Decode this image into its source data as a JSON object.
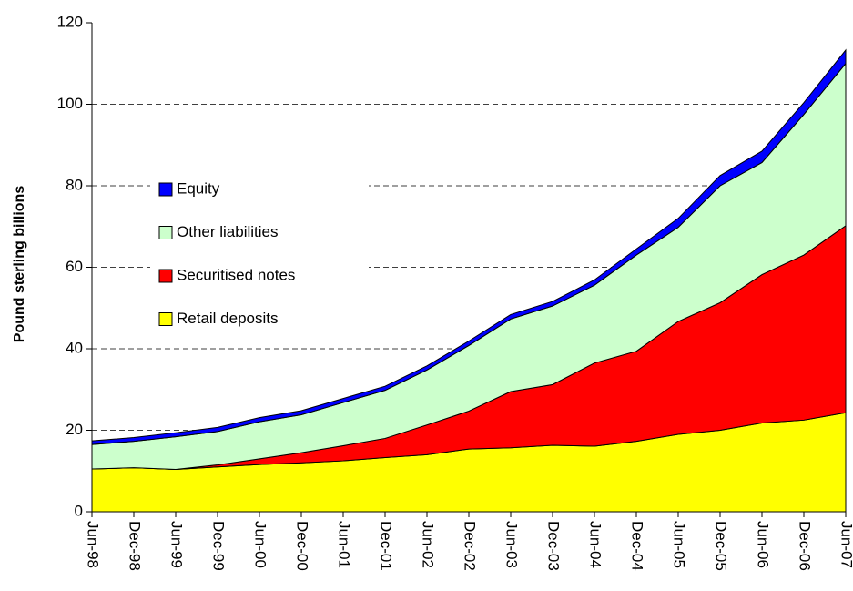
{
  "chart_data": {
    "type": "stacked_area",
    "y_label": "Pound sterling billions",
    "categories": [
      "Jun-98",
      "Dec-98",
      "Jun-99",
      "Dec-99",
      "Jun-00",
      "Dec-00",
      "Jun-01",
      "Dec-01",
      "Jun-02",
      "Dec-02",
      "Jun-03",
      "Dec-03",
      "Jun-04",
      "Dec-04",
      "Jun-05",
      "Dec-05",
      "Jun-06",
      "Dec-06",
      "Jun-07"
    ],
    "series": [
      {
        "name": "Retail deposits",
        "color": "#ffff00",
        "values": [
          10.5,
          10.8,
          10.4,
          11,
          11.6,
          12,
          12.5,
          13.3,
          14,
          15.4,
          15.7,
          16.3,
          16.1,
          17.3,
          19,
          20,
          21.8,
          22.5,
          24.3
        ]
      },
      {
        "name": "Securitised notes",
        "color": "#ff0000",
        "values": [
          0,
          0,
          0,
          0.5,
          1.4,
          2.5,
          3.7,
          4.7,
          7.3,
          9.3,
          13.8,
          14.9,
          20.4,
          22.1,
          27.7,
          31.3,
          36.4,
          40.5,
          45.9
        ]
      },
      {
        "name": "Other liabilities",
        "color": "#ccffcc",
        "values": [
          6,
          6.5,
          8,
          8.2,
          9.1,
          9.3,
          10.6,
          11.8,
          13.5,
          16.1,
          17.8,
          19.3,
          19.1,
          23.6,
          23.1,
          28.7,
          27.5,
          34.5,
          39.8
        ]
      },
      {
        "name": "Equity",
        "color": "#0000ff",
        "values": [
          0.9,
          0.9,
          1,
          1,
          1,
          1,
          1,
          1,
          1,
          1.1,
          1.1,
          1.1,
          1.3,
          1.5,
          2.2,
          2.5,
          2.8,
          2.9,
          3.3
        ]
      }
    ],
    "ylim": [
      0,
      120
    ],
    "yticks": [
      0,
      20,
      40,
      60,
      80,
      100,
      120
    ],
    "grid": true,
    "legend": "left"
  }
}
